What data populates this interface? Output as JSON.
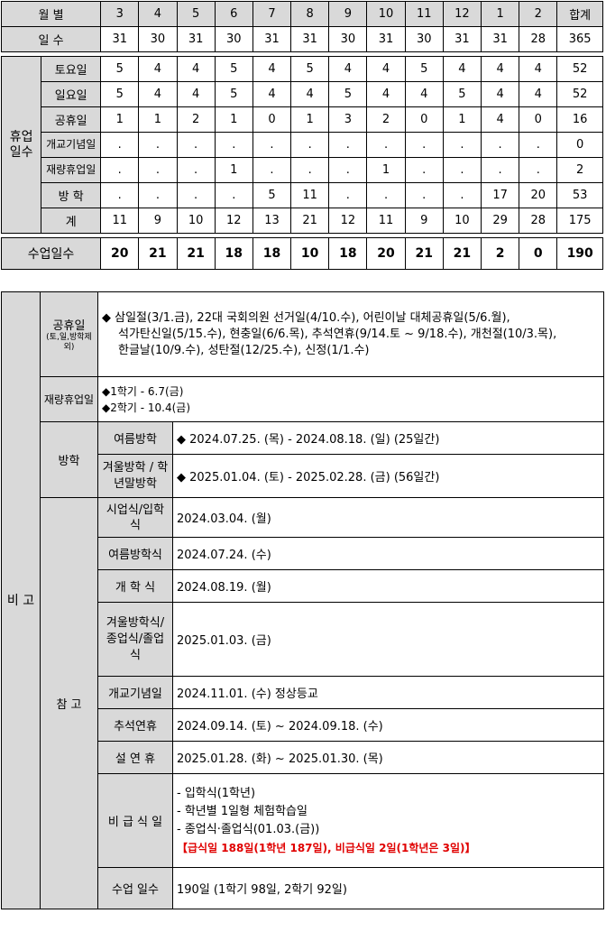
{
  "header": {
    "month_label": "월 별",
    "days_label": "일 수",
    "months": [
      "3",
      "4",
      "5",
      "6",
      "7",
      "8",
      "9",
      "10",
      "11",
      "12",
      "1",
      "2"
    ],
    "total_label": "합계",
    "days": [
      "31",
      "30",
      "31",
      "30",
      "31",
      "31",
      "30",
      "31",
      "30",
      "31",
      "31",
      "28"
    ],
    "days_total": "365"
  },
  "holidays": {
    "group_label": "휴업일수",
    "rows": [
      {
        "label": "토요일",
        "values": [
          "5",
          "4",
          "4",
          "5",
          "4",
          "5",
          "4",
          "4",
          "5",
          "4",
          "4",
          "4"
        ],
        "total": "52"
      },
      {
        "label": "일요일",
        "values": [
          "5",
          "4",
          "4",
          "5",
          "4",
          "4",
          "5",
          "4",
          "4",
          "5",
          "4",
          "4"
        ],
        "total": "52"
      },
      {
        "label": "공휴일",
        "values": [
          "1",
          "1",
          "2",
          "1",
          "0",
          "1",
          "3",
          "2",
          "0",
          "1",
          "4",
          "0"
        ],
        "total": "16"
      },
      {
        "label": "개교기념일",
        "values": [
          ".",
          ".",
          ".",
          ".",
          ".",
          ".",
          ".",
          ".",
          ".",
          ".",
          ".",
          "."
        ],
        "total": "0"
      },
      {
        "label": "재량휴업일",
        "values": [
          ".",
          ".",
          ".",
          "1",
          ".",
          ".",
          ".",
          "1",
          ".",
          ".",
          ".",
          "."
        ],
        "total": "2"
      },
      {
        "label": "방 학",
        "values": [
          ".",
          ".",
          ".",
          ".",
          "5",
          "11",
          ".",
          ".",
          ".",
          ".",
          "17",
          "20"
        ],
        "total": "53"
      },
      {
        "label": "계",
        "values": [
          "11",
          "9",
          "10",
          "12",
          "13",
          "21",
          "12",
          "11",
          "9",
          "10",
          "29",
          "28"
        ],
        "total": "175"
      }
    ]
  },
  "class_days": {
    "label": "수업일수",
    "values": [
      "20",
      "21",
      "21",
      "18",
      "18",
      "10",
      "18",
      "20",
      "21",
      "21",
      "2",
      "0"
    ],
    "total": "190"
  },
  "remarks": {
    "label": "비 고",
    "public_holiday": {
      "label": "공휴일",
      "sub": "(토,일,방학제외)",
      "lines": [
        "◆ 삼일절(3/1.금), 22대 국회의원 선거일(4/10.수), 어린이날 대체공휴일(5/6.월),",
        "석가탄신일(5/15.수), 현충일(6/6.목), 추석연휴(9/14.토 ~ 9/18.수), 개천절(10/3.목),",
        "한글날(10/9.수), 성탄절(12/25.수), 신정(1/1.수)"
      ]
    },
    "discretionary": {
      "label": "재량휴업일",
      "lines": [
        "◆1학기 - 6.7(금)",
        "◆2학기 - 10.4(금)"
      ]
    },
    "vacation": {
      "label": "방학",
      "summer_label": "여름방학",
      "summer_value": "◆ 2024.07.25. (목) - 2024.08.18. (일)   (25일간)",
      "winter_label": "겨울방학 / 학년말방학",
      "winter_value": "◆ 2025.01.04. (토) - 2025.02.28. (금)   (56일간)"
    },
    "reference": {
      "label": "참 고",
      "items": [
        {
          "label": "시업식/입학식",
          "value": "2024.03.04. (월)"
        },
        {
          "label": "여름방학식",
          "value": "2024.07.24. (수)"
        },
        {
          "label": "개 학 식",
          "value": "2024.08.19. (월)"
        },
        {
          "label": "겨울방학식/ 종업식/졸업식",
          "value": "2025.01.03. (금)"
        },
        {
          "label": "개교기념일",
          "value": "2024.11.01. (수) 정상등교"
        },
        {
          "label": "추석연휴",
          "value": "2024.09.14. (토) ~ 2024.09.18. (수)"
        },
        {
          "label": "설 연 휴",
          "value": "2025.01.28. (화) ~ 2025.01.30. (목)"
        }
      ],
      "meal": {
        "label": "비 급 식 일",
        "lines": [
          "- 입학식(1학년)",
          "- 학년별 1일형 체험학습일",
          "- 종업식·졸업식(01.03.(금))"
        ],
        "highlight": "【급식일 188일(1학년 187일), 비급식일 2일(1학년은 3일)】"
      },
      "class_days_label": "수업 일수",
      "class_days_value": "190일 (1학기 98일, 2학기 92일)"
    }
  }
}
